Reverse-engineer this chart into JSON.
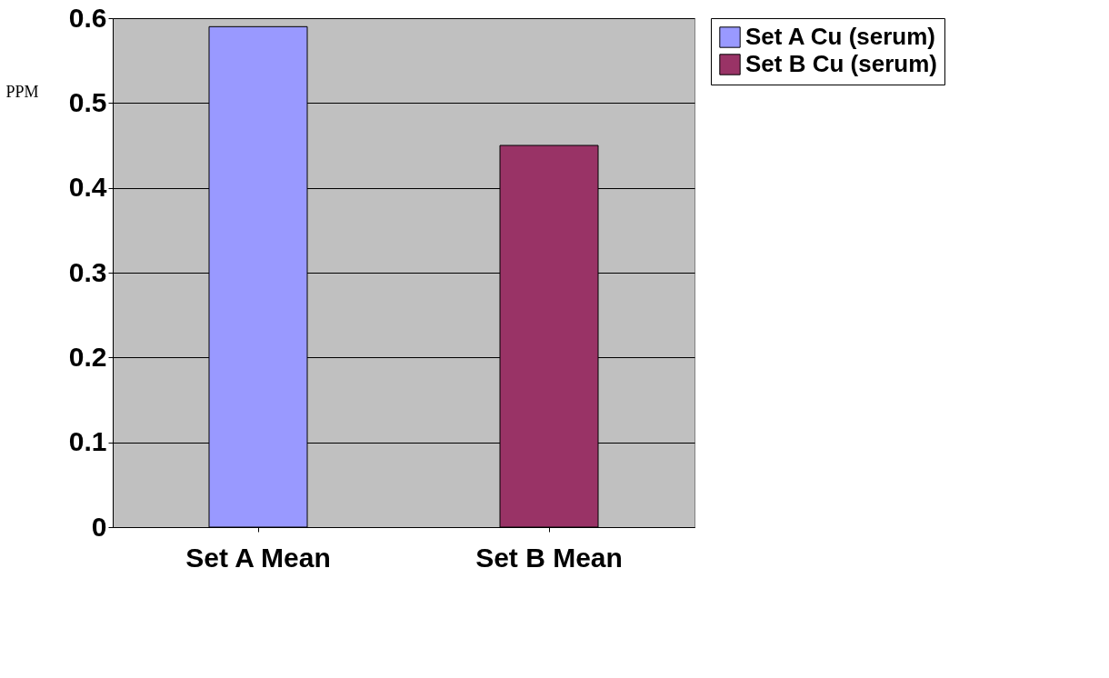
{
  "chart_data": {
    "type": "bar",
    "categories": [
      "Set A Mean",
      "Set B Mean"
    ],
    "ylabel": "PPM",
    "series": [
      {
        "name": "Set A Cu (serum)",
        "color": "#9999ff",
        "values": [
          0.59,
          null
        ]
      },
      {
        "name": "Set B Cu (serum)",
        "color": "#993366",
        "values": [
          null,
          0.45
        ]
      }
    ],
    "ylim": [
      0,
      0.6
    ],
    "yticks": [
      0,
      0.1,
      0.2,
      0.3,
      0.4,
      0.5,
      0.6
    ],
    "grid": "y",
    "legend": "right"
  }
}
